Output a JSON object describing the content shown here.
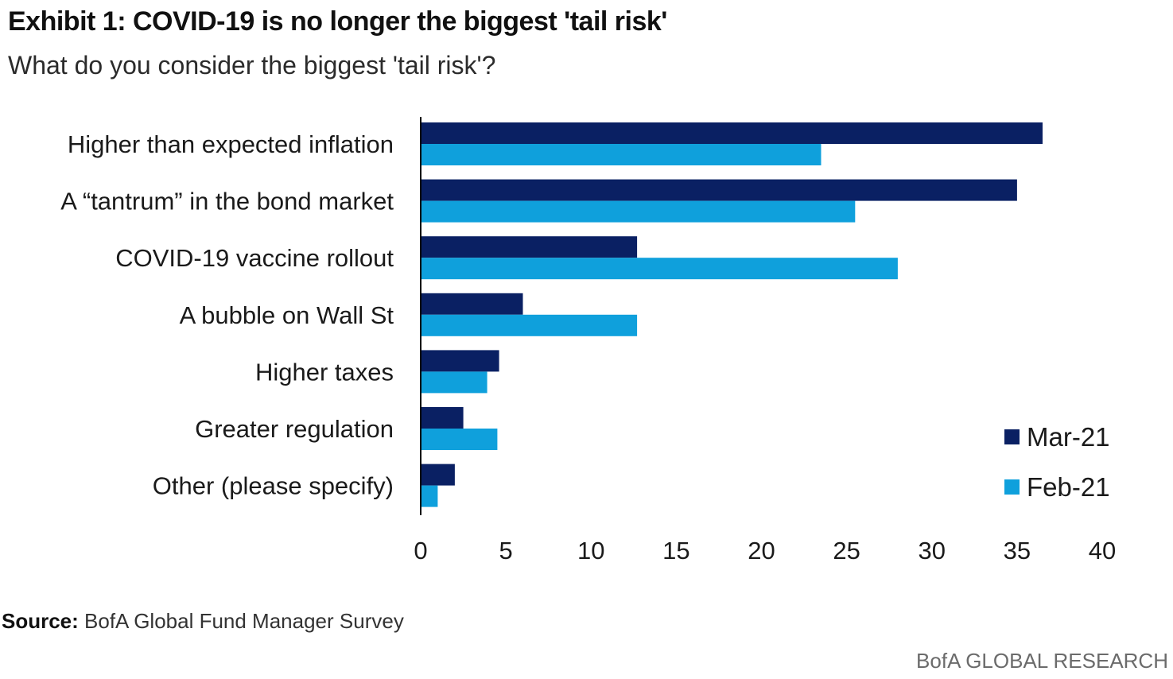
{
  "header": {
    "title": "Exhibit 1: COVID-19 is no longer the biggest 'tail risk'",
    "subtitle": "What do you consider the biggest 'tail risk'?"
  },
  "footer": {
    "source_label": "Source:",
    "source_text": " BofA Global Fund Manager Survey",
    "brand": "BofA GLOBAL RESEARCH"
  },
  "colors": {
    "mar21": "#0a2063",
    "feb21": "#0fa0dc",
    "axis": "#000000",
    "text": "#1a1a1a"
  },
  "chart_data": {
    "type": "bar",
    "orientation": "horizontal",
    "title": "Exhibit 1: COVID-19 is no longer the biggest 'tail risk'",
    "subtitle": "What do you consider the biggest 'tail risk'?",
    "xlabel": "",
    "ylabel": "",
    "xlim": [
      0,
      40
    ],
    "xticks": [
      0,
      5,
      10,
      15,
      20,
      25,
      30,
      35,
      40
    ],
    "grid": false,
    "legend_position": "bottom-right",
    "categories": [
      "Higher than expected inflation",
      "A “tantrum” in the bond market",
      "COVID-19 vaccine rollout",
      "A bubble on Wall St",
      "Higher taxes",
      "Greater regulation",
      "Other (please specify)"
    ],
    "series": [
      {
        "name": "Mar-21",
        "color": "#0a2063",
        "values": [
          36.5,
          35,
          12.7,
          6,
          4.6,
          2.5,
          2
        ]
      },
      {
        "name": "Feb-21",
        "color": "#0fa0dc",
        "values": [
          23.5,
          25.5,
          28,
          12.7,
          3.9,
          4.5,
          1
        ]
      }
    ]
  }
}
